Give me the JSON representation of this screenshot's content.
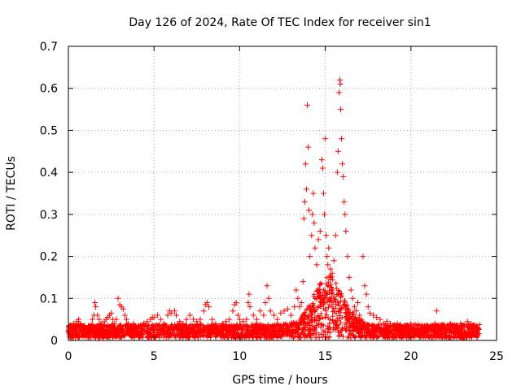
{
  "chart_data": {
    "type": "scatter",
    "title": "Day 126 of 2024, Rate Of TEC Index for receiver sin1",
    "xlabel": "GPS time / hours",
    "ylabel": "ROTI / TECUs",
    "xlim": [
      0,
      25
    ],
    "ylim": [
      0,
      0.7
    ],
    "xticks": [
      0,
      5,
      10,
      15,
      20,
      25
    ],
    "xtick_labels": [
      "0",
      "5",
      "10",
      "15",
      "20",
      "25"
    ],
    "yticks": [
      0,
      0.1,
      0.2,
      0.3,
      0.4,
      0.5,
      0.6,
      0.7
    ],
    "ytick_labels": [
      "0",
      "0.1",
      "0.2",
      "0.3",
      "0.4",
      "0.5",
      "0.6",
      "0.7"
    ],
    "grid": true,
    "marker": "plus",
    "color": "#ff0000",
    "series": [
      {
        "points": [
          [
            0.0,
            0.02
          ],
          [
            0.1,
            0.035
          ],
          [
            0.2,
            0.03
          ],
          [
            0.3,
            0.04
          ],
          [
            0.4,
            0.035
          ],
          [
            0.5,
            0.045
          ],
          [
            0.6,
            0.05
          ],
          [
            0.7,
            0.04
          ],
          [
            0.8,
            0.03
          ],
          [
            0.9,
            0.035
          ],
          [
            1.0,
            0.03
          ],
          [
            1.1,
            0.025
          ],
          [
            1.2,
            0.03
          ],
          [
            1.3,
            0.035
          ],
          [
            1.4,
            0.05
          ],
          [
            1.5,
            0.06
          ],
          [
            1.55,
            0.09
          ],
          [
            1.6,
            0.08
          ],
          [
            1.7,
            0.06
          ],
          [
            1.8,
            0.05
          ],
          [
            1.9,
            0.04
          ],
          [
            2.0,
            0.035
          ],
          [
            2.1,
            0.045
          ],
          [
            2.2,
            0.05
          ],
          [
            2.3,
            0.055
          ],
          [
            2.4,
            0.06
          ],
          [
            2.5,
            0.065
          ],
          [
            2.6,
            0.05
          ],
          [
            2.7,
            0.04
          ],
          [
            2.8,
            0.05
          ],
          [
            2.9,
            0.1
          ],
          [
            3.0,
            0.085
          ],
          [
            3.1,
            0.08
          ],
          [
            3.2,
            0.075
          ],
          [
            3.3,
            0.06
          ],
          [
            3.4,
            0.05
          ],
          [
            3.5,
            0.04
          ],
          [
            3.6,
            0.035
          ],
          [
            3.7,
            0.03
          ],
          [
            3.8,
            0.04
          ],
          [
            3.9,
            0.035
          ],
          [
            4.0,
            0.03
          ],
          [
            4.2,
            0.035
          ],
          [
            4.4,
            0.04
          ],
          [
            4.6,
            0.045
          ],
          [
            4.8,
            0.05
          ],
          [
            4.9,
            0.055
          ],
          [
            5.0,
            0.055
          ],
          [
            5.2,
            0.06
          ],
          [
            5.4,
            0.05
          ],
          [
            5.6,
            0.04
          ],
          [
            5.8,
            0.06
          ],
          [
            5.9,
            0.07
          ],
          [
            6.0,
            0.065
          ],
          [
            6.2,
            0.07
          ],
          [
            6.3,
            0.06
          ],
          [
            6.5,
            0.045
          ],
          [
            6.7,
            0.04
          ],
          [
            6.9,
            0.05
          ],
          [
            7.1,
            0.06
          ],
          [
            7.3,
            0.05
          ],
          [
            7.5,
            0.045
          ],
          [
            7.7,
            0.05
          ],
          [
            7.9,
            0.07
          ],
          [
            8.0,
            0.085
          ],
          [
            8.1,
            0.09
          ],
          [
            8.2,
            0.08
          ],
          [
            8.4,
            0.05
          ],
          [
            8.6,
            0.04
          ],
          [
            8.8,
            0.035
          ],
          [
            9.0,
            0.04
          ],
          [
            9.2,
            0.045
          ],
          [
            9.4,
            0.05
          ],
          [
            9.6,
            0.07
          ],
          [
            9.7,
            0.085
          ],
          [
            9.8,
            0.09
          ],
          [
            9.9,
            0.06
          ],
          [
            10.0,
            0.05
          ],
          [
            10.2,
            0.045
          ],
          [
            10.4,
            0.05
          ],
          [
            10.5,
            0.09
          ],
          [
            10.55,
            0.11
          ],
          [
            10.6,
            0.08
          ],
          [
            10.8,
            0.06
          ],
          [
            11.0,
            0.05
          ],
          [
            11.2,
            0.07
          ],
          [
            11.4,
            0.06
          ],
          [
            11.5,
            0.09
          ],
          [
            11.6,
            0.13
          ],
          [
            11.7,
            0.1
          ],
          [
            11.8,
            0.07
          ],
          [
            12.0,
            0.06
          ],
          [
            12.2,
            0.05
          ],
          [
            12.4,
            0.065
          ],
          [
            12.6,
            0.07
          ],
          [
            12.8,
            0.075
          ],
          [
            13.0,
            0.06
          ],
          [
            13.2,
            0.08
          ],
          [
            13.3,
            0.12
          ],
          [
            13.4,
            0.1
          ],
          [
            13.5,
            0.08
          ],
          [
            13.6,
            0.09
          ],
          [
            13.7,
            0.14
          ],
          [
            13.75,
            0.29
          ],
          [
            13.8,
            0.33
          ],
          [
            13.85,
            0.42
          ],
          [
            13.9,
            0.36
          ],
          [
            13.95,
            0.56
          ],
          [
            14.0,
            0.46
          ],
          [
            14.05,
            0.31
          ],
          [
            14.1,
            0.2
          ],
          [
            14.2,
            0.25
          ],
          [
            14.25,
            0.3
          ],
          [
            14.3,
            0.35
          ],
          [
            14.35,
            0.28
          ],
          [
            14.4,
            0.22
          ],
          [
            14.5,
            0.18
          ],
          [
            14.6,
            0.24
          ],
          [
            14.7,
            0.26
          ],
          [
            14.8,
            0.43
          ],
          [
            14.85,
            0.41
          ],
          [
            14.9,
            0.35
          ],
          [
            14.95,
            0.3
          ],
          [
            15.0,
            0.48
          ],
          [
            15.05,
            0.25
          ],
          [
            15.1,
            0.2
          ],
          [
            15.15,
            0.18
          ],
          [
            15.2,
            0.22
          ],
          [
            15.3,
            0.17
          ],
          [
            15.4,
            0.16
          ],
          [
            15.5,
            0.19
          ],
          [
            15.6,
            0.25
          ],
          [
            15.7,
            0.4
          ],
          [
            15.75,
            0.45
          ],
          [
            15.8,
            0.59
          ],
          [
            15.85,
            0.62
          ],
          [
            15.88,
            0.61
          ],
          [
            15.9,
            0.55
          ],
          [
            15.95,
            0.48
          ],
          [
            16.0,
            0.42
          ],
          [
            16.05,
            0.39
          ],
          [
            16.1,
            0.33
          ],
          [
            16.15,
            0.3
          ],
          [
            16.2,
            0.26
          ],
          [
            16.3,
            0.2
          ],
          [
            16.4,
            0.15
          ],
          [
            16.5,
            0.12
          ],
          [
            16.6,
            0.1
          ],
          [
            16.7,
            0.08
          ],
          [
            16.8,
            0.07
          ],
          [
            16.9,
            0.09
          ],
          [
            17.0,
            0.06
          ],
          [
            17.1,
            0.05
          ],
          [
            17.2,
            0.2
          ],
          [
            17.3,
            0.13
          ],
          [
            17.4,
            0.11
          ],
          [
            17.5,
            0.08
          ],
          [
            17.6,
            0.065
          ],
          [
            17.8,
            0.06
          ],
          [
            18.0,
            0.055
          ],
          [
            18.2,
            0.05
          ],
          [
            18.4,
            0.04
          ],
          [
            18.6,
            0.045
          ],
          [
            18.8,
            0.04
          ],
          [
            19.0,
            0.035
          ],
          [
            19.2,
            0.04
          ],
          [
            19.4,
            0.035
          ],
          [
            19.6,
            0.03
          ],
          [
            19.8,
            0.035
          ],
          [
            20.0,
            0.04
          ],
          [
            20.2,
            0.03
          ],
          [
            20.4,
            0.035
          ],
          [
            20.6,
            0.03
          ],
          [
            20.8,
            0.035
          ],
          [
            21.0,
            0.03
          ],
          [
            21.2,
            0.035
          ],
          [
            21.4,
            0.04
          ],
          [
            21.5,
            0.07
          ],
          [
            21.7,
            0.035
          ],
          [
            21.9,
            0.03
          ],
          [
            22.1,
            0.035
          ],
          [
            22.3,
            0.04
          ],
          [
            22.5,
            0.03
          ],
          [
            22.7,
            0.035
          ],
          [
            22.9,
            0.04
          ],
          [
            23.1,
            0.035
          ],
          [
            23.3,
            0.045
          ],
          [
            23.5,
            0.04
          ],
          [
            23.7,
            0.035
          ],
          [
            23.9,
            0.03
          ]
        ]
      }
    ]
  }
}
